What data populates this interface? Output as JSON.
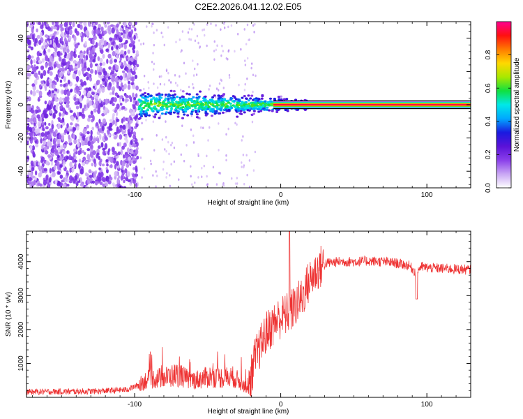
{
  "title": "C2E2.2026.041.12.02.E05",
  "chart_data": [
    {
      "type": "heatmap",
      "xlabel": "Height of straight line (km)",
      "ylabel": "Frequency (Hz)",
      "xlim": [
        -174,
        130
      ],
      "ylim": [
        -50,
        50
      ],
      "x_ticks": [
        -100,
        0,
        100
      ],
      "y_ticks": [
        -40,
        -20,
        0,
        20,
        40
      ],
      "colorbar": {
        "label": "Normalized spectral amplitude",
        "range": [
          0,
          1
        ],
        "ticks": [
          0.0,
          0.2,
          0.4,
          0.6,
          0.8
        ],
        "tick_labels": [
          "0.0",
          "0.2",
          "0.4",
          "0.6",
          "0.8"
        ],
        "colors": [
          "#ffffff",
          "#c9a6f4",
          "#8a3fea",
          "#5a12d8",
          "#1a1ae0",
          "#00a8ff",
          "#00e8e8",
          "#10e040",
          "#a8e800",
          "#ffd800",
          "#ff7a00",
          "#ff1010",
          "#ff0090"
        ]
      },
      "regions": [
        {
          "x_range": [
            -174,
            -97
          ],
          "freq_range": [
            -50,
            50
          ],
          "amplitude": 0.15
        },
        {
          "x_range": [
            -97,
            20
          ],
          "freq_center": 0,
          "freq_spread": 5,
          "amplitude": 0.45
        },
        {
          "x_range": [
            20,
            130
          ],
          "freq_center": 0,
          "freq_spread": 1,
          "amplitude": 0.95
        }
      ]
    },
    {
      "type": "line",
      "xlabel": "Height of straight line (km)",
      "ylabel": "SNR (10 * v/v)",
      "xlim": [
        -174,
        130
      ],
      "ylim": [
        0,
        4900
      ],
      "x_ticks": [
        -100,
        0,
        100
      ],
      "y_ticks": [
        1000,
        2000,
        3000,
        4000
      ],
      "series_color": "#ee3333",
      "series": [
        {
          "x": [
            -174,
            -150,
            -125,
            -105,
            -98,
            -92,
            -85,
            -78,
            -70,
            -62,
            -55,
            -48,
            -40,
            -32,
            -26,
            -22,
            -18,
            -14,
            -10,
            -6,
            -2,
            2,
            6,
            10,
            14,
            18,
            22,
            26,
            30,
            40,
            50,
            60,
            70,
            80,
            88,
            92,
            96,
            100,
            110,
            120,
            130
          ],
          "y": [
            160,
            170,
            180,
            230,
            350,
            520,
            560,
            600,
            680,
            500,
            540,
            620,
            580,
            600,
            380,
            200,
            1100,
            1500,
            1900,
            2100,
            2300,
            2400,
            2500,
            2700,
            2900,
            3300,
            3600,
            3800,
            3950,
            4000,
            4000,
            4020,
            4000,
            3950,
            3880,
            3700,
            3850,
            3820,
            3800,
            3780,
            3760
          ]
        }
      ]
    }
  ]
}
